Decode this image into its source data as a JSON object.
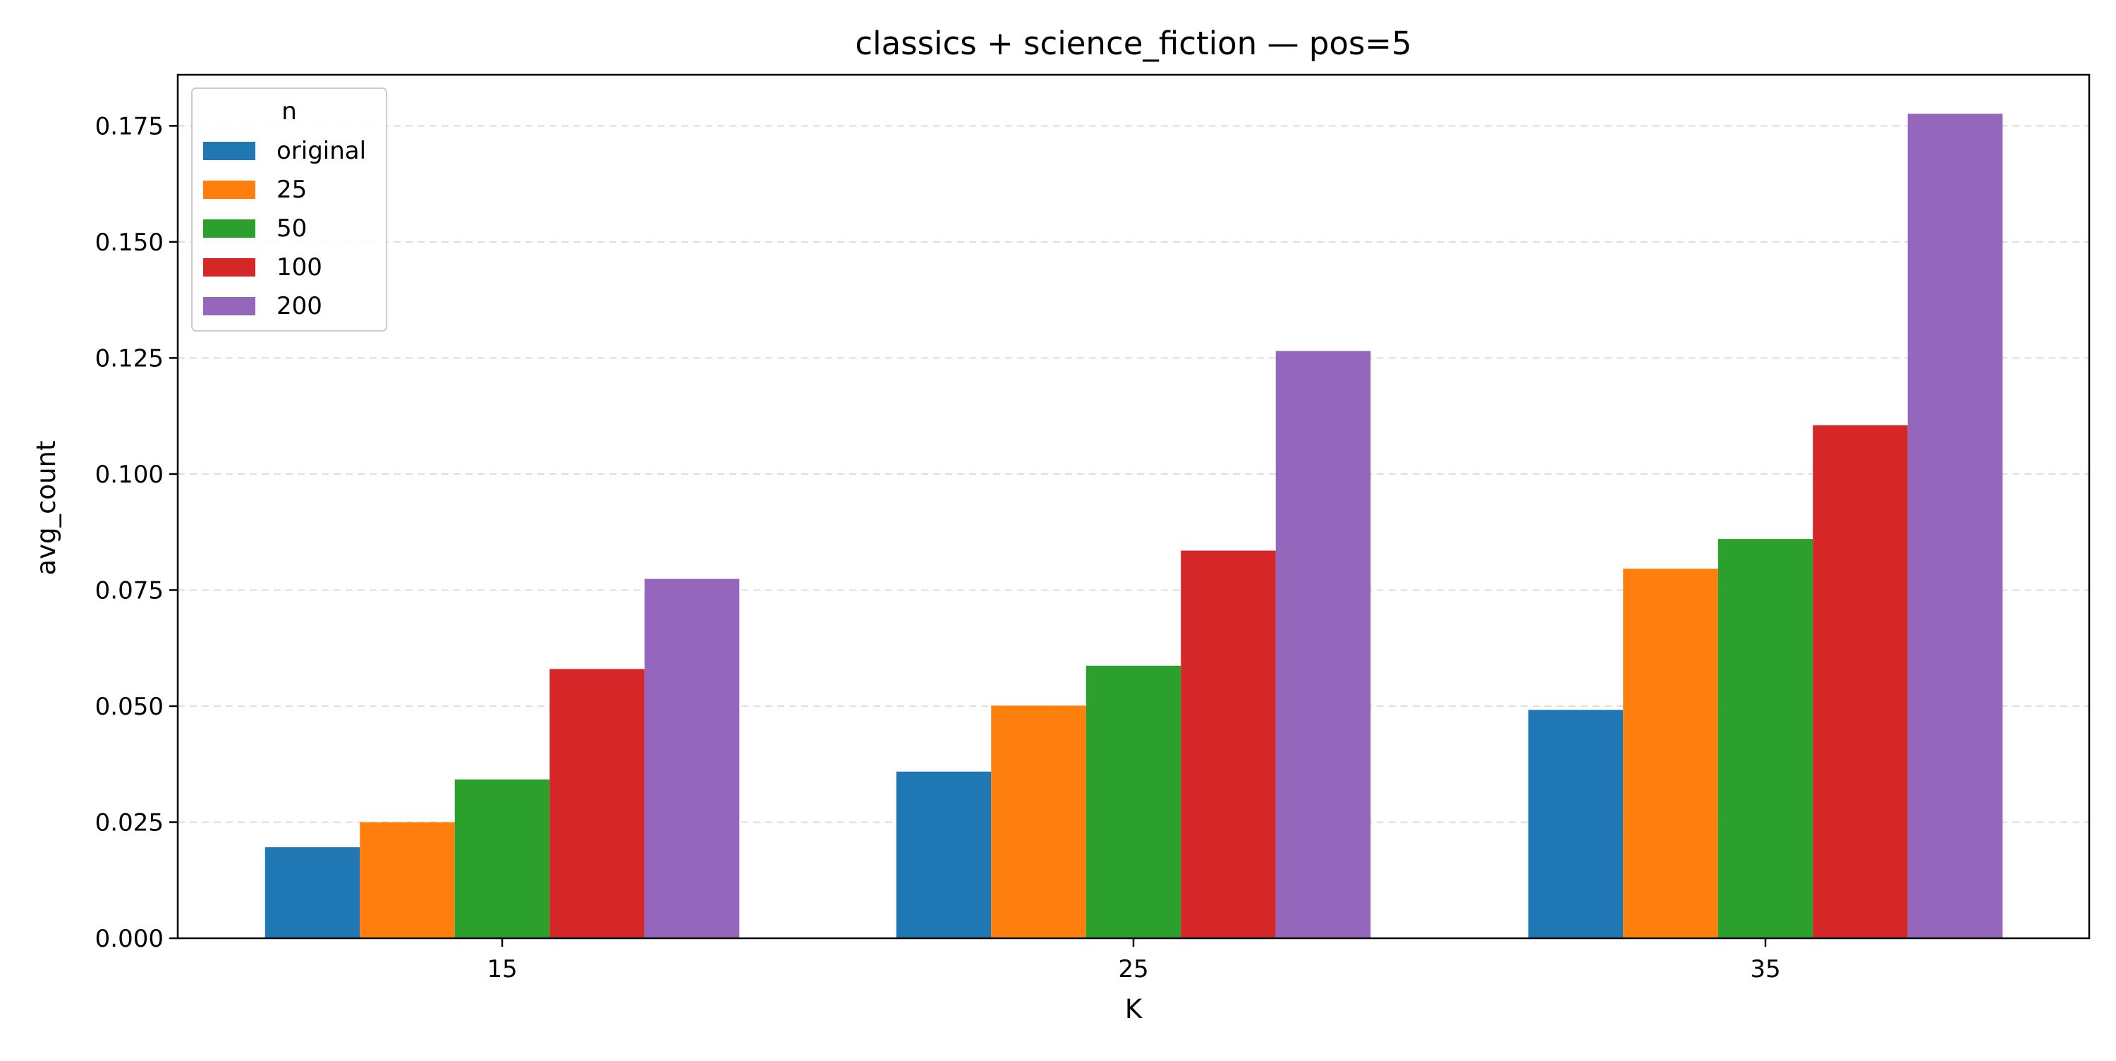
{
  "chart_data": {
    "type": "bar",
    "title": "classics + science_fiction — pos=5",
    "xlabel": "K",
    "ylabel": "avg_count",
    "categories": [
      "15",
      "25",
      "35"
    ],
    "ylim": [
      0,
      0.186
    ],
    "yticks": [
      "0.000",
      "0.025",
      "0.050",
      "0.075",
      "0.100",
      "0.125",
      "0.150",
      "0.175"
    ],
    "grid": "horizontal dashed",
    "legend": {
      "title": "n",
      "placement": "top-left"
    },
    "series": [
      {
        "name": "original",
        "color": "#1f77b4",
        "values": [
          0.0196,
          0.0359,
          0.0492
        ]
      },
      {
        "name": "25",
        "color": "#ff7f0e",
        "values": [
          0.025,
          0.0501,
          0.0796
        ]
      },
      {
        "name": "50",
        "color": "#2ca02c",
        "values": [
          0.0342,
          0.0587,
          0.086
        ]
      },
      {
        "name": "100",
        "color": "#d62728",
        "values": [
          0.058,
          0.0835,
          0.1105
        ]
      },
      {
        "name": "200",
        "color": "#9467bd",
        "values": [
          0.0774,
          0.1265,
          0.1776
        ]
      }
    ]
  }
}
